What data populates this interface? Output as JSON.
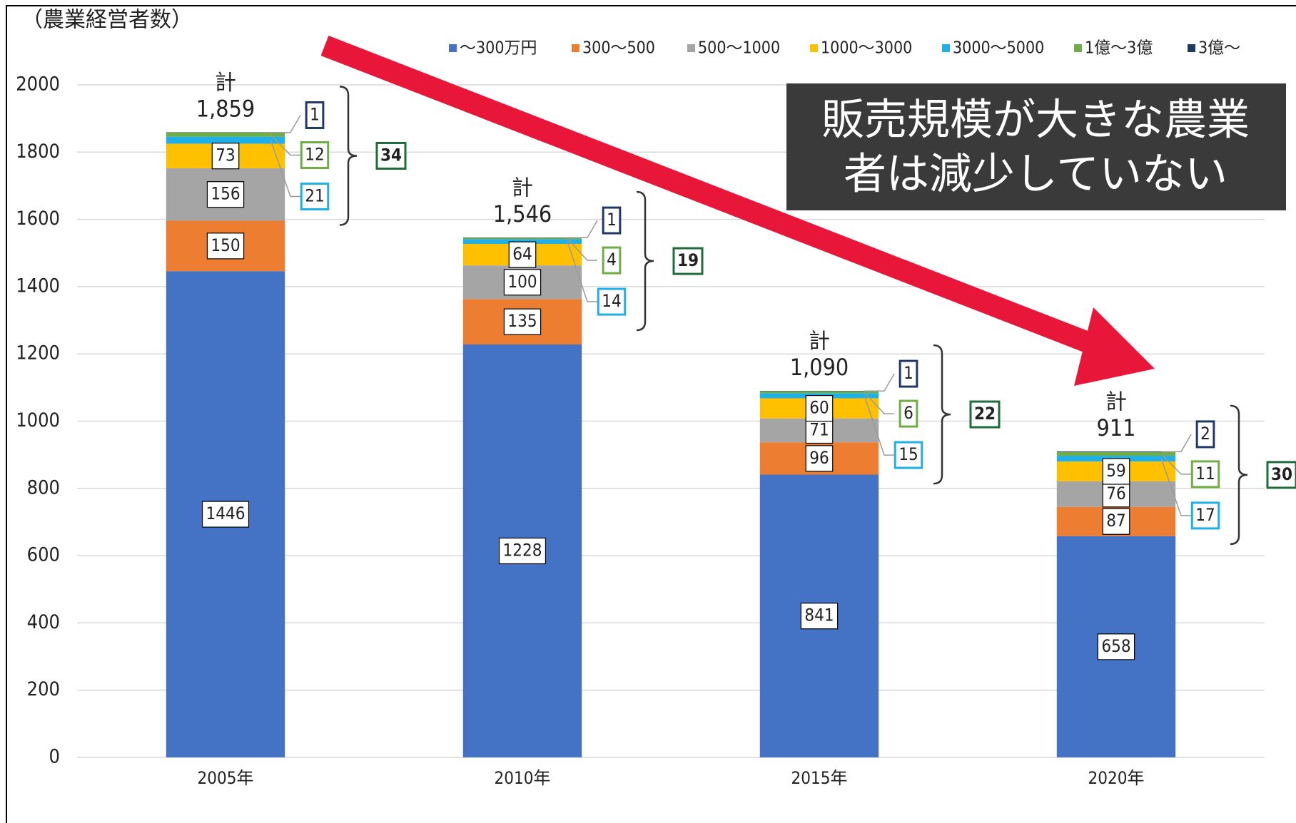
{
  "chart_data": {
    "type": "stacked_bar",
    "y_axis_label": "（農業経営者数）",
    "categories": [
      "2005年",
      "2010年",
      "2015年",
      "2020年"
    ],
    "series": [
      {
        "name": "～300万円",
        "color": "#4472c4",
        "values": [
          1446,
          1228,
          841,
          658
        ]
      },
      {
        "name": "300～500",
        "color": "#ed7d31",
        "values": [
          150,
          135,
          96,
          87
        ]
      },
      {
        "name": "500～1000",
        "color": "#a5a5a5",
        "values": [
          156,
          100,
          71,
          76
        ]
      },
      {
        "name": "1000～3000",
        "color": "#ffc000",
        "values": [
          73,
          64,
          60,
          59
        ]
      },
      {
        "name": "3000～5000",
        "color": "#1fb0e8",
        "values": [
          21,
          14,
          15,
          17
        ]
      },
      {
        "name": "1億～3億",
        "color": "#70ad47",
        "values": [
          12,
          4,
          6,
          11
        ]
      },
      {
        "name": "3億～",
        "color": "#203864",
        "values": [
          1,
          1,
          1,
          2
        ]
      }
    ],
    "total_prefix": "計",
    "totals": [
      1859,
      1546,
      1090,
      911
    ],
    "total_labels": [
      "1,859",
      "1,546",
      "1,090",
      "911"
    ],
    "group_sums": [
      34,
      19,
      22,
      30
    ],
    "annotation": [
      "販売規模が大きな農業",
      "者は減少していない"
    ],
    "ylim": [
      0,
      2000
    ],
    "yticks": [
      0,
      200,
      400,
      600,
      800,
      1000,
      1200,
      1400,
      1600,
      1800,
      2000
    ],
    "grid": true,
    "legend": "top"
  }
}
